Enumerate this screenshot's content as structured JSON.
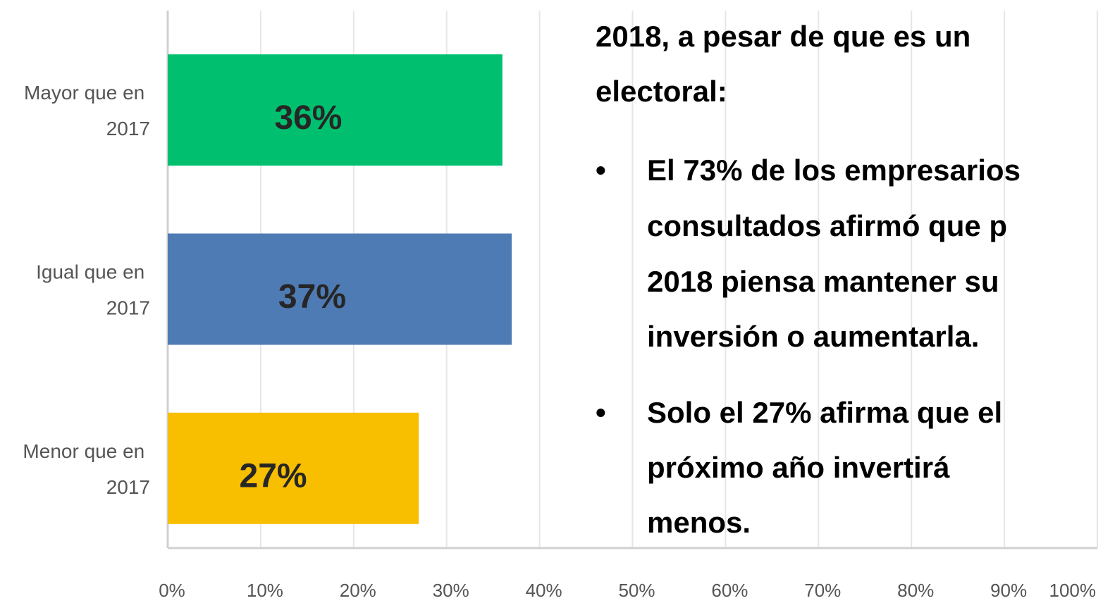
{
  "chart_data": {
    "type": "barh",
    "categories": [
      "Mayor que en 2017",
      "Igual que en 2017",
      "Menor que en 2017"
    ],
    "values": [
      36,
      37,
      27
    ],
    "value_labels": [
      "36%",
      "37%",
      "27%"
    ],
    "colors": [
      "#00c06f",
      "#4f7bb5",
      "#f8be00"
    ],
    "xlim": [
      0,
      100
    ],
    "xticks": [
      {
        "value": 0,
        "label": "0%"
      },
      {
        "value": 10,
        "label": "10%"
      },
      {
        "value": 20,
        "label": "20%"
      },
      {
        "value": 30,
        "label": "30%"
      },
      {
        "value": 40,
        "label": "40%"
      },
      {
        "value": 50,
        "label": "50%"
      },
      {
        "value": 60,
        "label": "60%"
      },
      {
        "value": 70,
        "label": "70%"
      },
      {
        "value": 80,
        "label": "80%"
      },
      {
        "value": 90,
        "label": "90%"
      },
      {
        "value": 100,
        "label": "100%"
      }
    ],
    "grid": true
  },
  "text": {
    "lines": [
      "2018, a pesar de que es un",
      "electoral:"
    ],
    "bullets": [
      [
        "El 73% de los empresarios",
        "consultados afirmó que p",
        "2018 piensa mantener su",
        "inversión o aumentarla."
      ],
      [
        "Solo el 27% afirma que el",
        "próximo año invertirá",
        "menos."
      ]
    ]
  }
}
